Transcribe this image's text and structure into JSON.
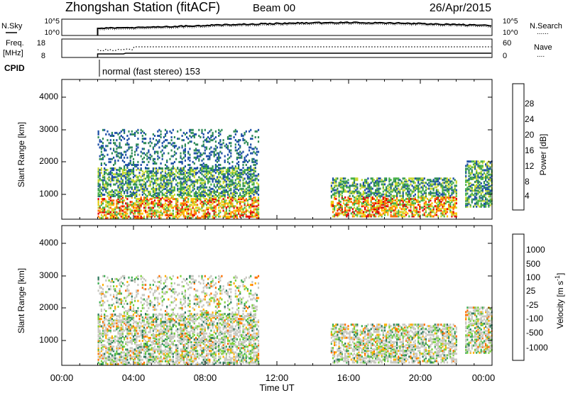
{
  "header": {
    "title": "Zhongshan Station (fitACF)",
    "beam": "Beam 00",
    "date": "26/Apr/2015"
  },
  "sky_panel": {
    "left_label": "N.Sky",
    "right_label": "N.Search",
    "left_ticks": [
      "10^5",
      "10^0"
    ],
    "right_ticks": [
      "10^5",
      "10^0"
    ],
    "right_legend_line": "......"
  },
  "freq_panel": {
    "label_line1": "Freq.",
    "label_line2": "[MHz]",
    "right_label": "Nave",
    "left_ticks": [
      "18",
      "8"
    ],
    "right_ticks": [
      "60",
      "0"
    ],
    "right_legend_line": "...."
  },
  "cpid": {
    "label": "CPID",
    "text": "normal (fast stereo) 153"
  },
  "chart_data": [
    {
      "type": "heatmap",
      "panel": "power",
      "ylabel": "Slant Range [km]",
      "ylim": [
        180,
        4500
      ],
      "yticks": [
        "4000",
        "3000",
        "2000",
        "1000"
      ],
      "xlim_hours": [
        0,
        24
      ],
      "colorbar": {
        "label": "Power [dB]",
        "ticks": [
          "28",
          "24",
          "20",
          "16",
          "12",
          "8",
          "4"
        ],
        "colors": [
          "#0000ff",
          "#1d4fa6",
          "#2e8b57",
          "#47b047",
          "#c8d830",
          "#ffc000",
          "#ff6a00",
          "#e00000"
        ]
      },
      "regions": [
        {
          "t": [
            2.0,
            11.0
          ],
          "r": [
            250,
            1800
          ],
          "level": "mixed-high"
        },
        {
          "t": [
            2.0,
            11.0
          ],
          "r": [
            1800,
            3000
          ],
          "level": "low"
        },
        {
          "t": [
            15.0,
            22.0
          ],
          "r": [
            300,
            1500
          ],
          "level": "mixed-high"
        },
        {
          "t": [
            22.5,
            24.0
          ],
          "r": [
            600,
            2000
          ],
          "level": "mixed"
        }
      ]
    },
    {
      "type": "heatmap",
      "panel": "velocity",
      "ylabel": "Slant Range [km]",
      "xlabel": "Time UT",
      "ylim": [
        180,
        4500
      ],
      "yticks": [
        "4000",
        "3000",
        "2000",
        "1000"
      ],
      "xticks": [
        "00:00",
        "04:00",
        "08:00",
        "12:00",
        "16:00",
        "20:00",
        "00:00"
      ],
      "xlim_hours": [
        0,
        24
      ],
      "colorbar": {
        "label": "Velocity [m s",
        "label_sup": "-1",
        "label_close": "]",
        "ticks": [
          "1000",
          "500",
          "100",
          "25",
          "-25",
          "-100",
          "-500",
          "-1000"
        ],
        "colors": [
          "#1a3fb0",
          "#2e7a5e",
          "#3fae54",
          "#7cd13c",
          "#c8c8c0",
          "#ffb000",
          "#ff7000",
          "#ff3000",
          "#e00000"
        ]
      }
    }
  ]
}
